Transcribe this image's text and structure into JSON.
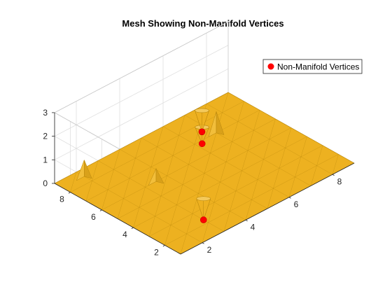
{
  "chart_data": {
    "type": "surface",
    "title": "Mesh Showing Non-Manifold Vertices",
    "xlabel": "",
    "ylabel": "",
    "zlabel": "",
    "xlim": [
      1,
      9
    ],
    "ylim": [
      1,
      9
    ],
    "zlim": [
      0,
      3
    ],
    "x_ticks": [
      2,
      4,
      6,
      8
    ],
    "y_ticks": [
      2,
      4,
      6,
      8
    ],
    "z_ticks": [
      0,
      1,
      2,
      3
    ],
    "grid": true,
    "mesh_color": "#EDB120",
    "edge_color": "#B8860B",
    "marker_color": "#FF0000",
    "mesh_plane_z": 0,
    "mesh_spacing": 1,
    "spikes": [
      {
        "x": 3.5,
        "y": 6.0,
        "height": 0.55
      },
      {
        "x": 2.0,
        "y": 8.5,
        "height": 0.7
      },
      {
        "x": 7.0,
        "y": 7.0,
        "height": 0.9
      }
    ],
    "series": [
      {
        "name": "Non-Manifold Vertices",
        "type": "scatter",
        "points": [
          {
            "x": 3.0,
            "y": 2.3,
            "z": 0
          },
          {
            "x": 6.2,
            "y": 6.8,
            "z": 0
          },
          {
            "x": 6.7,
            "y": 7.5,
            "z": 0
          }
        ],
        "cones": [
          {
            "x": 3.0,
            "y": 2.3,
            "height": 0.9
          },
          {
            "x": 6.2,
            "y": 6.8,
            "height": 0.7
          },
          {
            "x": 6.7,
            "y": 7.5,
            "height": 0.9
          }
        ]
      }
    ],
    "legend": {
      "position": "top-right",
      "entries": [
        "Non-Manifold Vertices"
      ]
    }
  }
}
